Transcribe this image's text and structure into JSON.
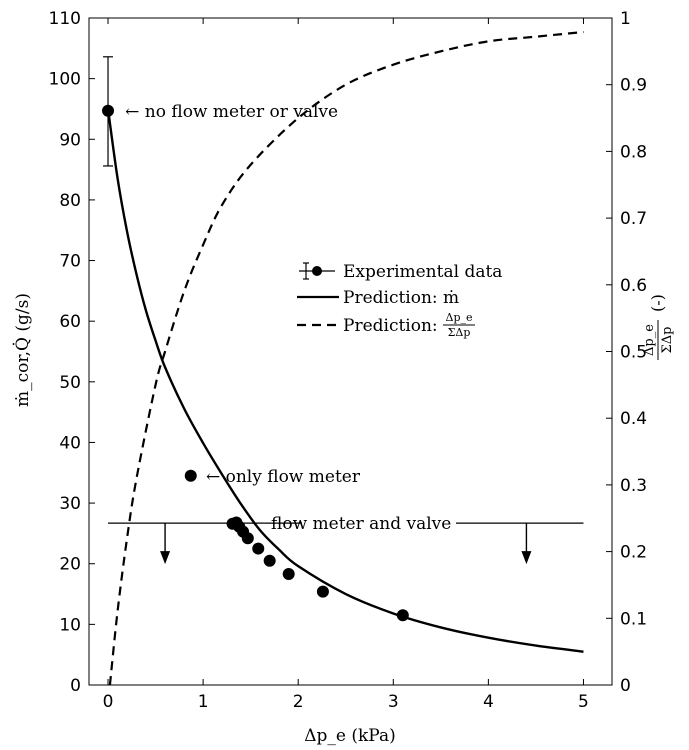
{
  "chart_data": {
    "type": "scatter",
    "xlabel": "Δp_e (kPa)",
    "ylabel_left": "ṁ_cor,Q̇ (g/s)",
    "ylabel_right_frac": {
      "num": "Δp_e",
      "den": "ΣΔp",
      "unit": "(-)"
    },
    "xlim": [
      -0.2,
      5.3
    ],
    "ylim_left": [
      0,
      110
    ],
    "ylim_right": [
      0,
      1
    ],
    "xticks": [
      "0",
      "1",
      "2",
      "3",
      "4",
      "5"
    ],
    "yticks_left": [
      "0",
      "10",
      "20",
      "30",
      "40",
      "50",
      "60",
      "70",
      "80",
      "90",
      "100",
      "110"
    ],
    "yticks_right": [
      "0",
      "0.1",
      "0.2",
      "0.3",
      "0.4",
      "0.5",
      "0.6",
      "0.7",
      "0.8",
      "0.9",
      "1"
    ],
    "grid": false,
    "legend_position": "center",
    "legend": [
      {
        "label": "Experimental data",
        "style": "marker-errorbar"
      },
      {
        "label": "Prediction: ṁ",
        "style": "solid"
      },
      {
        "label": "Prediction:",
        "frac_num": "Δp_e",
        "frac_den": "ΣΔp",
        "style": "dashed"
      }
    ],
    "series": [
      {
        "name": "Experimental data",
        "axis": "left",
        "points": [
          {
            "x": 0.0,
            "y": 94.7,
            "yerr_low": 85.6,
            "yerr_high": 103.6
          },
          {
            "x": 0.87,
            "y": 34.5
          },
          {
            "x": 1.31,
            "y": 26.6
          },
          {
            "x": 1.35,
            "y": 26.8
          },
          {
            "x": 1.38,
            "y": 26.1
          },
          {
            "x": 1.42,
            "y": 25.3
          },
          {
            "x": 1.47,
            "y": 24.2
          },
          {
            "x": 1.58,
            "y": 22.5
          },
          {
            "x": 1.7,
            "y": 20.5
          },
          {
            "x": 1.9,
            "y": 18.3
          },
          {
            "x": 2.26,
            "y": 15.4
          },
          {
            "x": 3.1,
            "y": 11.5
          }
        ]
      },
      {
        "name": "Prediction: ṁ",
        "axis": "left",
        "style": "solid",
        "x": [
          0,
          0.1,
          0.2,
          0.3,
          0.4,
          0.5,
          0.6,
          0.8,
          1.0,
          1.2,
          1.4,
          1.6,
          1.8,
          2.0,
          2.5,
          3.0,
          3.5,
          4.0,
          4.5,
          5.0
        ],
        "y": [
          95.0,
          83.6,
          74.8,
          67.7,
          61.7,
          56.8,
          52.4,
          45.6,
          39.9,
          34.7,
          29.8,
          25.5,
          22.3,
          19.6,
          15.0,
          11.8,
          9.5,
          7.8,
          6.5,
          5.5
        ]
      },
      {
        "name": "Prediction: Δp_e/ΣΔp",
        "axis": "right",
        "style": "dashed",
        "x": [
          0.02,
          0.1,
          0.2,
          0.3,
          0.5,
          0.6,
          0.8,
          1.0,
          1.2,
          1.5,
          2.0,
          2.5,
          3.0,
          3.5,
          4.0,
          4.5,
          5.0
        ],
        "y": [
          0.0,
          0.11,
          0.22,
          0.31,
          0.45,
          0.5,
          0.59,
          0.66,
          0.72,
          0.78,
          0.85,
          0.9,
          0.93,
          0.95,
          0.965,
          0.972,
          0.979
        ]
      }
    ],
    "threshold": {
      "y": 26.7,
      "x_start": 0.0,
      "x_end": 5.0,
      "label": "flow meter and valve",
      "arrow_x": [
        0.6,
        4.4
      ]
    },
    "annotations": [
      {
        "text": "← no flow meter or valve",
        "x": 0.18,
        "y": 94.7
      },
      {
        "text": "← only flow meter",
        "x": 1.03,
        "y": 34.5
      }
    ]
  }
}
